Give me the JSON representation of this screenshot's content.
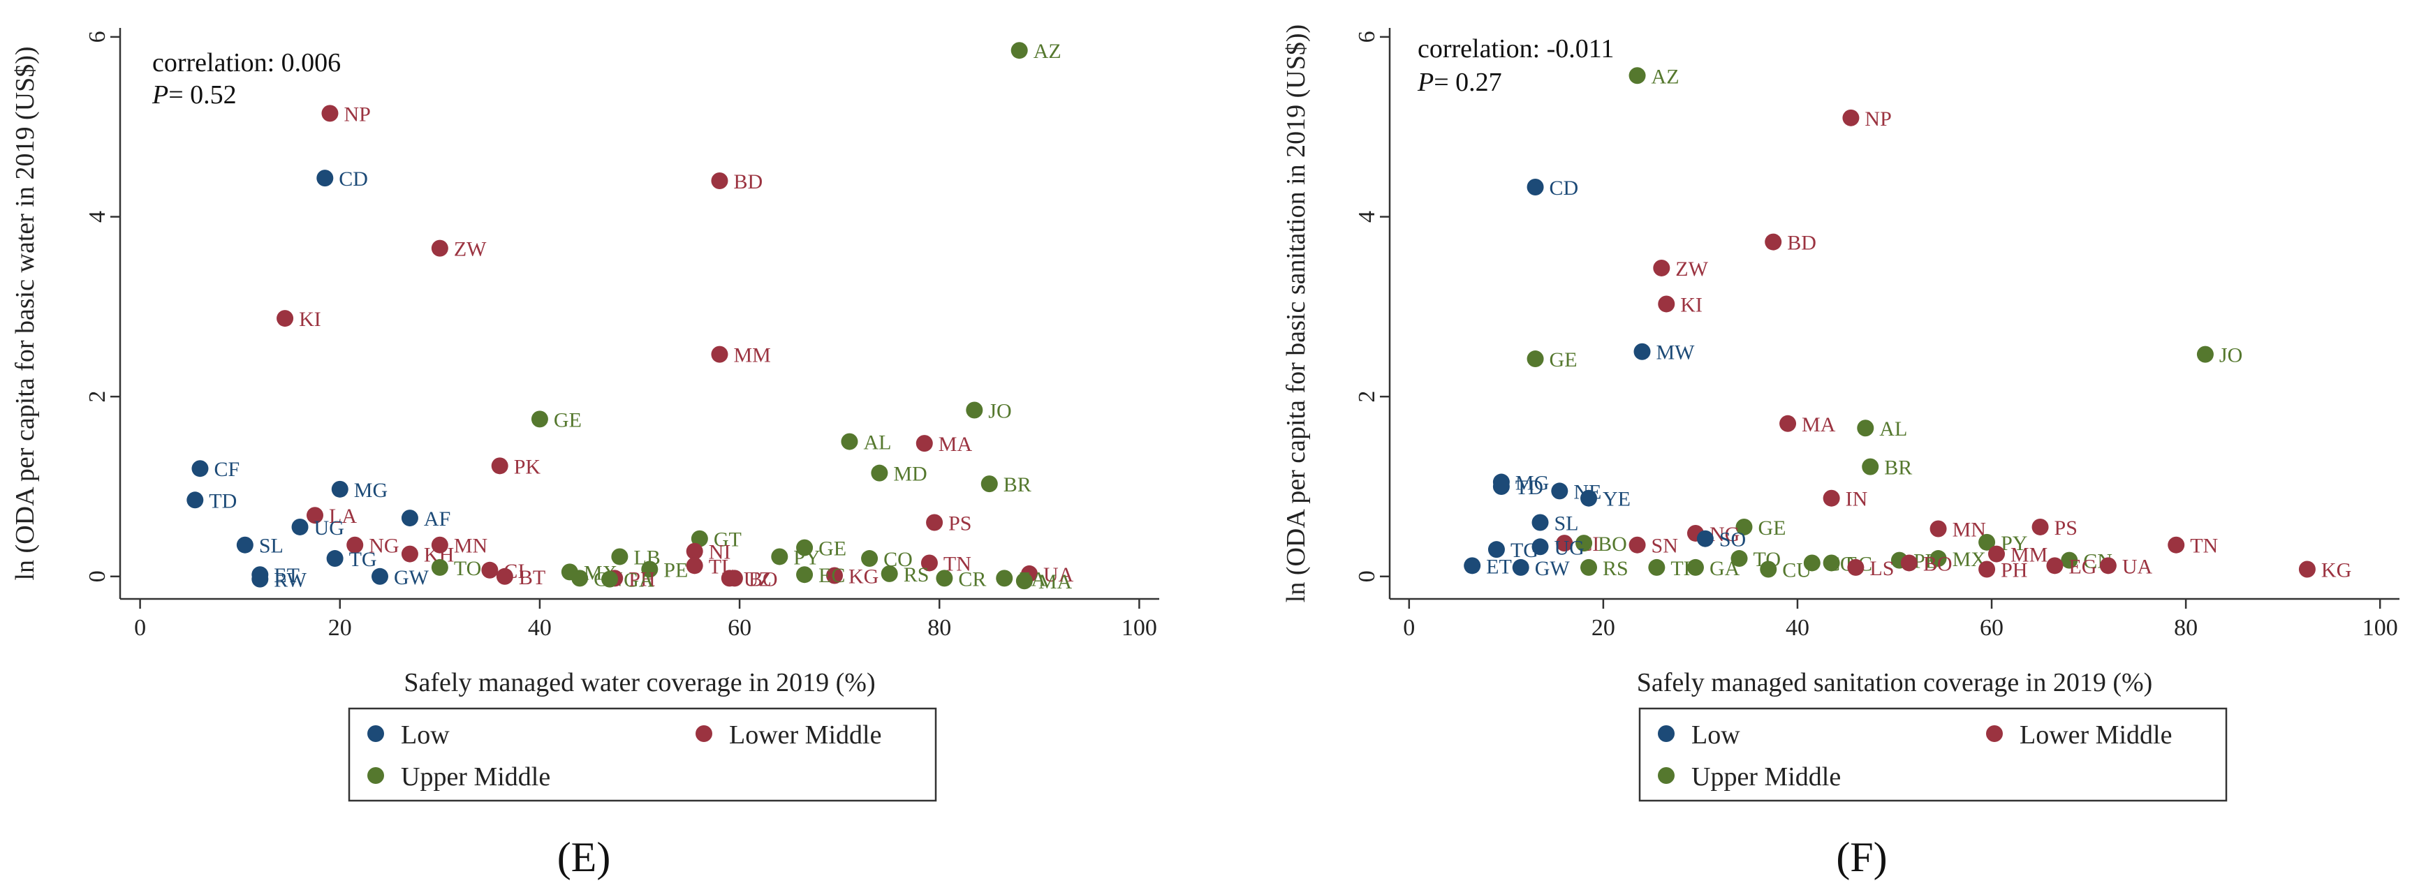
{
  "colors": {
    "Low": "#1c4a77",
    "Lower Middle": "#9b3340",
    "Upper Middle": "#55782e"
  },
  "legend_items": [
    "Low",
    "Lower Middle",
    "Upper Middle"
  ],
  "chart_data": [
    {
      "type": "scatter",
      "panel_letter": "(E)",
      "xlabel": "Safely managed water coverage in 2019 (%)",
      "ylabel": "ln (ODA per capita for basic water in 2019 (US$))",
      "xlim": [
        -2,
        102
      ],
      "ylim": [
        -0.25,
        6.1
      ],
      "xticks": [
        "0",
        "20",
        "40",
        "60",
        "80",
        "100"
      ],
      "yticks": [
        "0",
        "2",
        "4",
        "6"
      ],
      "correlation_text": "correlation: 0.006",
      "p_prefix": "P",
      "p_value_text": "= 0.52",
      "points": [
        {
          "label": "AZ",
          "x": 88,
          "y": 5.85,
          "group": "Upper Middle"
        },
        {
          "label": "NP",
          "x": 19,
          "y": 5.15,
          "group": "Lower Middle"
        },
        {
          "label": "CD",
          "x": 18.5,
          "y": 4.43,
          "group": "Low"
        },
        {
          "label": "BD",
          "x": 58,
          "y": 4.4,
          "group": "Lower Middle"
        },
        {
          "label": "ZW",
          "x": 30,
          "y": 3.65,
          "group": "Lower Middle"
        },
        {
          "label": "KI",
          "x": 14.5,
          "y": 2.87,
          "group": "Lower Middle"
        },
        {
          "label": "MM",
          "x": 58,
          "y": 2.47,
          "group": "Lower Middle"
        },
        {
          "label": "JO",
          "x": 83.5,
          "y": 1.85,
          "group": "Upper Middle"
        },
        {
          "label": "GE",
          "x": 40,
          "y": 1.75,
          "group": "Upper Middle"
        },
        {
          "label": "AL",
          "x": 71,
          "y": 1.5,
          "group": "Upper Middle"
        },
        {
          "label": "MA",
          "x": 78.5,
          "y": 1.48,
          "group": "Lower Middle"
        },
        {
          "label": "PK",
          "x": 36,
          "y": 1.23,
          "group": "Lower Middle"
        },
        {
          "label": "CF",
          "x": 6,
          "y": 1.2,
          "group": "Low"
        },
        {
          "label": "MD",
          "x": 74,
          "y": 1.15,
          "group": "Upper Middle"
        },
        {
          "label": "BR",
          "x": 85,
          "y": 1.03,
          "group": "Upper Middle"
        },
        {
          "label": "MG",
          "x": 20,
          "y": 0.97,
          "group": "Low"
        },
        {
          "label": "TD",
          "x": 5.5,
          "y": 0.85,
          "group": "Low"
        },
        {
          "label": "LA",
          "x": 17.5,
          "y": 0.68,
          "group": "Lower Middle"
        },
        {
          "label": "AF",
          "x": 27,
          "y": 0.65,
          "group": "Low"
        },
        {
          "label": "PS",
          "x": 79.5,
          "y": 0.6,
          "group": "Lower Middle"
        },
        {
          "label": "UG",
          "x": 16,
          "y": 0.55,
          "group": "Low"
        },
        {
          "label": "GT",
          "x": 56,
          "y": 0.42,
          "group": "Upper Middle"
        },
        {
          "label": "SL",
          "x": 10.5,
          "y": 0.35,
          "group": "Low"
        },
        {
          "label": "NG",
          "x": 21.5,
          "y": 0.35,
          "group": "Lower Middle"
        },
        {
          "label": "MN",
          "x": 30,
          "y": 0.35,
          "group": "Lower Middle"
        },
        {
          "label": "GE",
          "x": 66.5,
          "y": 0.32,
          "group": "Upper Middle"
        },
        {
          "label": "NI",
          "x": 55.5,
          "y": 0.28,
          "group": "Lower Middle"
        },
        {
          "label": "KH",
          "x": 27,
          "y": 0.25,
          "group": "Lower Middle"
        },
        {
          "label": "LB",
          "x": 48,
          "y": 0.22,
          "group": "Upper Middle"
        },
        {
          "label": "TG",
          "x": 19.5,
          "y": 0.2,
          "group": "Low"
        },
        {
          "label": "PY",
          "x": 64,
          "y": 0.22,
          "group": "Upper Middle"
        },
        {
          "label": "CO",
          "x": 73,
          "y": 0.2,
          "group": "Upper Middle"
        },
        {
          "label": "TN",
          "x": 79,
          "y": 0.15,
          "group": "Lower Middle"
        },
        {
          "label": "TO",
          "x": 30,
          "y": 0.1,
          "group": "Upper Middle"
        },
        {
          "label": "TL",
          "x": 55.5,
          "y": 0.12,
          "group": "Lower Middle"
        },
        {
          "label": "PE",
          "x": 51,
          "y": 0.08,
          "group": "Upper Middle"
        },
        {
          "label": "CI",
          "x": 35,
          "y": 0.07,
          "group": "Lower Middle"
        },
        {
          "label": "MX",
          "x": 43,
          "y": 0.05,
          "group": "Upper Middle"
        },
        {
          "label": "UA",
          "x": 89,
          "y": 0.03,
          "group": "Lower Middle"
        },
        {
          "label": "RS",
          "x": 75,
          "y": 0.03,
          "group": "Upper Middle"
        },
        {
          "label": "KG",
          "x": 69.5,
          "y": 0.01,
          "group": "Lower Middle"
        },
        {
          "label": "BT",
          "x": 36.5,
          "y": 0.0,
          "group": "Lower Middle"
        },
        {
          "label": "ET",
          "x": 12,
          "y": 0.02,
          "group": "Low"
        },
        {
          "label": "RW",
          "x": 12,
          "y": -0.03,
          "group": "Low"
        },
        {
          "label": "GW",
          "x": 24,
          "y": 0.0,
          "group": "Low"
        },
        {
          "label": "CN",
          "x": 44,
          "y": -0.02,
          "group": "Upper Middle"
        },
        {
          "label": "PH",
          "x": 47.5,
          "y": -0.02,
          "group": "Lower Middle"
        },
        {
          "label": "GA",
          "x": 47,
          "y": -0.03,
          "group": "Upper Middle"
        },
        {
          "label": "UZ",
          "x": 59,
          "y": -0.02,
          "group": "Lower Middle"
        },
        {
          "label": "BO",
          "x": 59.5,
          "y": -0.02,
          "group": "Lower Middle"
        },
        {
          "label": "EC",
          "x": 66.5,
          "y": 0.02,
          "group": "Upper Middle"
        },
        {
          "label": "CR",
          "x": 80.5,
          "y": -0.02,
          "group": "Upper Middle"
        },
        {
          "label": "ZA",
          "x": 86.5,
          "y": -0.02,
          "group": "Upper Middle"
        },
        {
          "label": "MA",
          "x": 88.5,
          "y": -0.05,
          "group": "Upper Middle"
        }
      ]
    },
    {
      "type": "scatter",
      "panel_letter": "(F)",
      "xlabel": "Safely managed sanitation coverage in 2019 (%)",
      "ylabel": "ln (ODA per capita for basic sanitation in 2019 (US$))",
      "xlim": [
        -2,
        102
      ],
      "ylim": [
        -0.25,
        6.1
      ],
      "xticks": [
        "0",
        "20",
        "40",
        "60",
        "80",
        "100"
      ],
      "yticks": [
        "0",
        "2",
        "4",
        "6"
      ],
      "correlation_text": "correlation: -0.011",
      "p_prefix": "P",
      "p_value_text": "= 0.27",
      "points": [
        {
          "label": "AZ",
          "x": 23.5,
          "y": 5.57,
          "group": "Upper Middle"
        },
        {
          "label": "NP",
          "x": 45.5,
          "y": 5.1,
          "group": "Lower Middle"
        },
        {
          "label": "CD",
          "x": 13,
          "y": 4.33,
          "group": "Low"
        },
        {
          "label": "BD",
          "x": 37.5,
          "y": 3.72,
          "group": "Lower Middle"
        },
        {
          "label": "ZW",
          "x": 26,
          "y": 3.43,
          "group": "Lower Middle"
        },
        {
          "label": "KI",
          "x": 26.5,
          "y": 3.03,
          "group": "Lower Middle"
        },
        {
          "label": "MW",
          "x": 24,
          "y": 2.5,
          "group": "Low"
        },
        {
          "label": "JO",
          "x": 82,
          "y": 2.47,
          "group": "Upper Middle"
        },
        {
          "label": "GE",
          "x": 13,
          "y": 2.42,
          "group": "Upper Middle"
        },
        {
          "label": "MA",
          "x": 39,
          "y": 1.7,
          "group": "Lower Middle"
        },
        {
          "label": "AL",
          "x": 47,
          "y": 1.65,
          "group": "Upper Middle"
        },
        {
          "label": "BR",
          "x": 47.5,
          "y": 1.22,
          "group": "Upper Middle"
        },
        {
          "label": "MG",
          "x": 9.5,
          "y": 1.05,
          "group": "Low"
        },
        {
          "label": "TD",
          "x": 9.5,
          "y": 1.0,
          "group": "Low"
        },
        {
          "label": "NE",
          "x": 15.5,
          "y": 0.95,
          "group": "Low"
        },
        {
          "label": "YE",
          "x": 18.5,
          "y": 0.87,
          "group": "Low"
        },
        {
          "label": "IN",
          "x": 43.5,
          "y": 0.87,
          "group": "Lower Middle"
        },
        {
          "label": "SL",
          "x": 13.5,
          "y": 0.6,
          "group": "Low"
        },
        {
          "label": "GE",
          "x": 34.5,
          "y": 0.55,
          "group": "Upper Middle"
        },
        {
          "label": "PS",
          "x": 65,
          "y": 0.55,
          "group": "Lower Middle"
        },
        {
          "label": "MN",
          "x": 54.5,
          "y": 0.53,
          "group": "Lower Middle"
        },
        {
          "label": "NG",
          "x": 29.5,
          "y": 0.48,
          "group": "Lower Middle"
        },
        {
          "label": "SO",
          "x": 30.5,
          "y": 0.42,
          "group": "Low"
        },
        {
          "label": "PY",
          "x": 59.5,
          "y": 0.38,
          "group": "Upper Middle"
        },
        {
          "label": "CI",
          "x": 16,
          "y": 0.37,
          "group": "Lower Middle"
        },
        {
          "label": "BO",
          "x": 18,
          "y": 0.37,
          "group": "Upper Middle"
        },
        {
          "label": "SN",
          "x": 23.5,
          "y": 0.35,
          "group": "Lower Middle"
        },
        {
          "label": "TN",
          "x": 79,
          "y": 0.35,
          "group": "Lower Middle"
        },
        {
          "label": "TG",
          "x": 9,
          "y": 0.3,
          "group": "Low"
        },
        {
          "label": "UG",
          "x": 13.5,
          "y": 0.33,
          "group": "Low"
        },
        {
          "label": "MM",
          "x": 60.5,
          "y": 0.25,
          "group": "Lower Middle"
        },
        {
          "label": "TO",
          "x": 34,
          "y": 0.2,
          "group": "Upper Middle"
        },
        {
          "label": "MX",
          "x": 54.5,
          "y": 0.2,
          "group": "Upper Middle"
        },
        {
          "label": "PE",
          "x": 50.5,
          "y": 0.18,
          "group": "Upper Middle"
        },
        {
          "label": "CN",
          "x": 68,
          "y": 0.18,
          "group": "Upper Middle"
        },
        {
          "label": "CO",
          "x": 41.5,
          "y": 0.15,
          "group": "Upper Middle"
        },
        {
          "label": "EC",
          "x": 43.5,
          "y": 0.15,
          "group": "Upper Middle"
        },
        {
          "label": "BO",
          "x": 51.5,
          "y": 0.15,
          "group": "Lower Middle"
        },
        {
          "label": "UA",
          "x": 72,
          "y": 0.12,
          "group": "Lower Middle"
        },
        {
          "label": "EG",
          "x": 66.5,
          "y": 0.12,
          "group": "Lower Middle"
        },
        {
          "label": "ET",
          "x": 6.5,
          "y": 0.12,
          "group": "Low"
        },
        {
          "label": "GW",
          "x": 11.5,
          "y": 0.1,
          "group": "Low"
        },
        {
          "label": "RS",
          "x": 18.5,
          "y": 0.1,
          "group": "Upper Middle"
        },
        {
          "label": "TH",
          "x": 25.5,
          "y": 0.1,
          "group": "Upper Middle"
        },
        {
          "label": "GA",
          "x": 29.5,
          "y": 0.1,
          "group": "Upper Middle"
        },
        {
          "label": "CU",
          "x": 37,
          "y": 0.08,
          "group": "Upper Middle"
        },
        {
          "label": "LS",
          "x": 46,
          "y": 0.1,
          "group": "Lower Middle"
        },
        {
          "label": "PH",
          "x": 59.5,
          "y": 0.08,
          "group": "Lower Middle"
        },
        {
          "label": "KG",
          "x": 92.5,
          "y": 0.08,
          "group": "Lower Middle"
        }
      ]
    }
  ]
}
